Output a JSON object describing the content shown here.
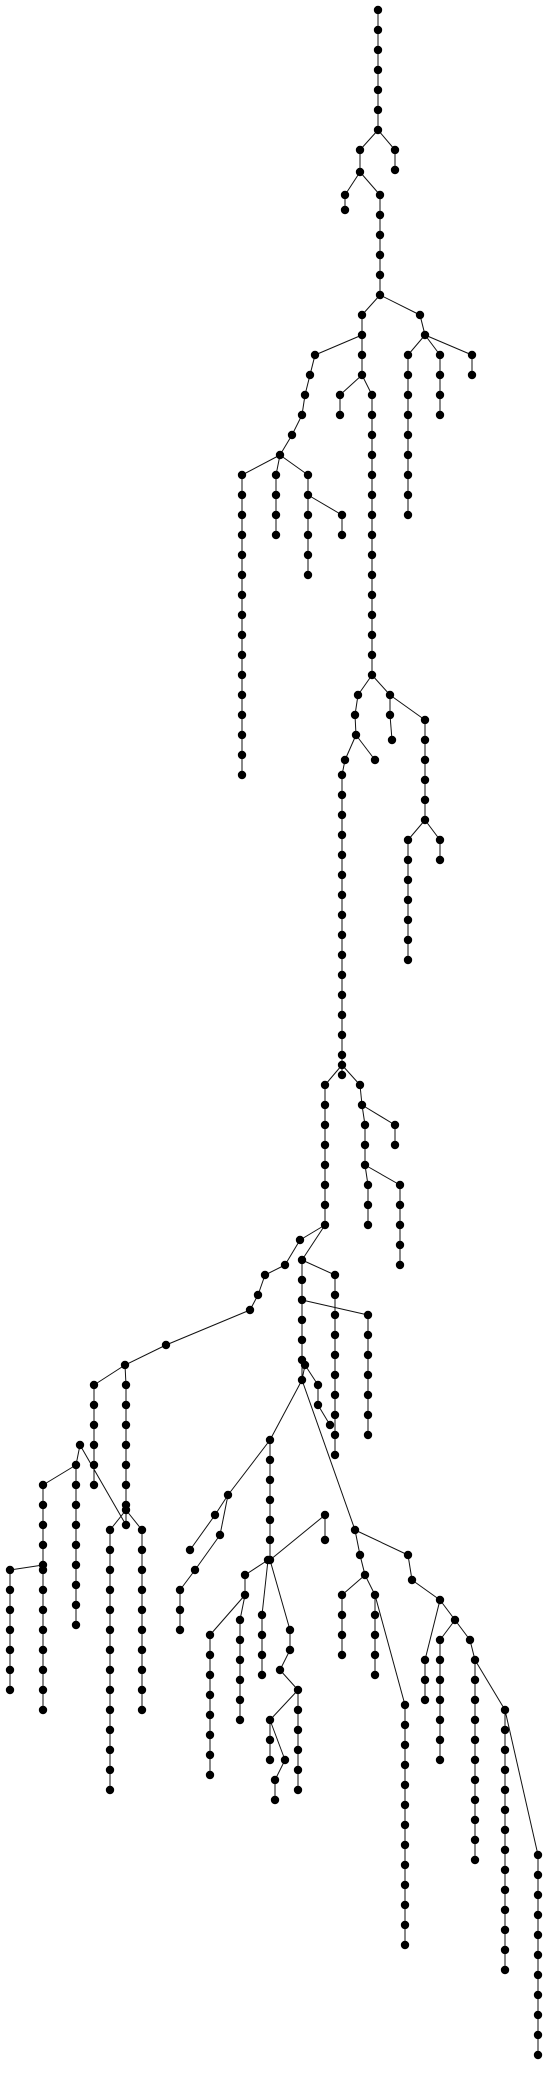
{
  "diagram": {
    "type": "rooted-tree",
    "node_color": "#000000",
    "edge_color": "#111111",
    "background": "#ffffff",
    "labels": []
  }
}
